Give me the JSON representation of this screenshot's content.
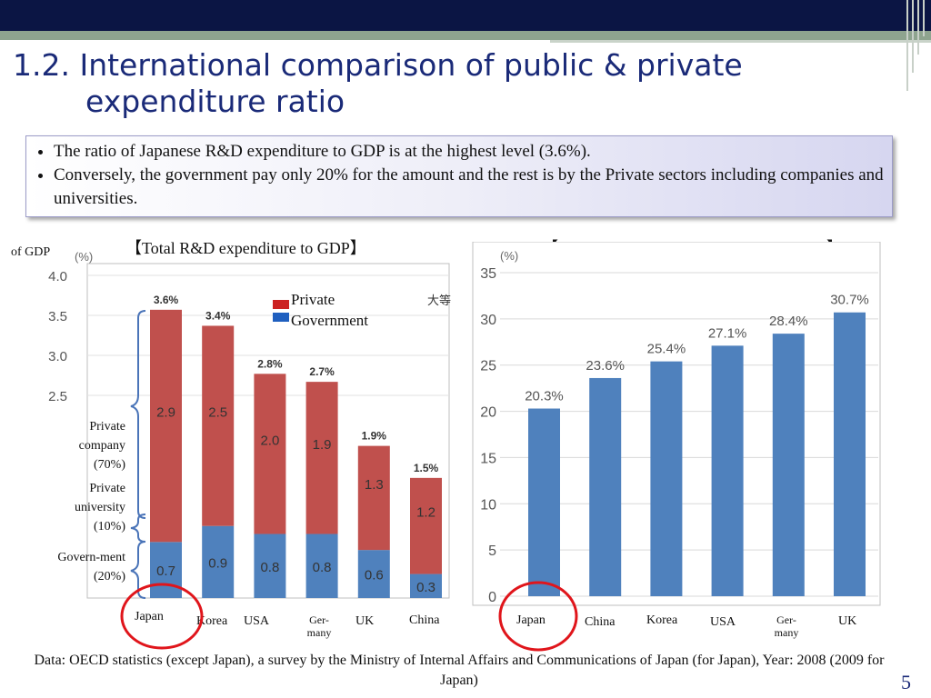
{
  "slide": {
    "title_line1": "1.2. International comparison of public & private",
    "title_line2": "expenditure ratio",
    "bullets": [
      "The ratio of Japanese R&D expenditure to GDP is at the highest level (3.6%).",
      "Conversely, the government pay only 20% for the amount and the rest is by the Private sectors including companies and universities."
    ],
    "footer": "Data: OECD statistics (except Japan), a survey by the Ministry of Internal Affairs and  Communications of Japan (for Japan), Year: 2008 (2009 for Japan)",
    "page_number": "5",
    "unit_label": "of GDP",
    "side_labels": {
      "company": "Private company (70%)",
      "university": "Private university (10%)",
      "government": "Govern-ment (20%)"
    }
  },
  "chart_data": [
    {
      "type": "bar",
      "stacked": true,
      "title": "【Total R&D expenditure to GDP】",
      "ylabel": "(%)",
      "yticks": [
        "2.5",
        "3.0",
        "3.5",
        "4.0"
      ],
      "categories": [
        "Japan",
        "Korea",
        "USA",
        "Ger-many",
        "UK",
        "China"
      ],
      "totals_labels": [
        "3.6%",
        "3.4%",
        "2.8%",
        "2.7%",
        "1.9%",
        "1.5%"
      ],
      "series": [
        {
          "name": "Government",
          "values": [
            0.7,
            0.9,
            0.8,
            0.8,
            0.6,
            0.3
          ],
          "color": "#4f81bd"
        },
        {
          "name": "Private",
          "values": [
            2.9,
            2.5,
            2.0,
            1.9,
            1.3,
            1.2
          ],
          "color": "#c0504d"
        }
      ],
      "legend": [
        "Private",
        "Government"
      ],
      "legend_colors": [
        "#cc2222",
        "#1f5fbf"
      ],
      "highlight": "Japan",
      "annotation": "大等"
    },
    {
      "type": "bar",
      "title": "【Governmental R&D expenditure to GDP】",
      "ylabel": "(%)",
      "yticks": [
        "0",
        "5",
        "10",
        "15",
        "20",
        "25",
        "30",
        "35"
      ],
      "ylim": [
        0,
        35
      ],
      "categories": [
        "Japan",
        "China",
        "Korea",
        "USA",
        "Ger-many",
        "UK"
      ],
      "values": [
        20.3,
        23.6,
        25.4,
        27.1,
        28.4,
        30.7
      ],
      "value_labels": [
        "20.3%",
        "23.6%",
        "25.4%",
        "27.1%",
        "28.4%",
        "30.7%"
      ],
      "color": "#4f81bd",
      "highlight": "Japan"
    }
  ]
}
